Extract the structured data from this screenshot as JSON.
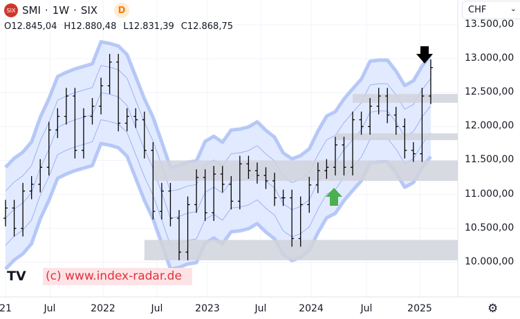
{
  "header": {
    "symbol": "SMI",
    "interval": "1W",
    "exchange": "SIX",
    "logo_text": "SIX",
    "data_badge": "D",
    "open": "O12.845,04",
    "high": "H12.880,48",
    "low": "L12.831,39",
    "close": "C12.868,75"
  },
  "currency": "CHF",
  "watermark": "(c) www.index-radar.de",
  "tv_logo": "TV",
  "chart_data": {
    "type": "ohlc",
    "title": "SMI · 1W · SIX",
    "x_labels": [
      "21",
      "Jul",
      "2022",
      "Jul",
      "2023",
      "Jul",
      "2024",
      "Jul",
      "2025"
    ],
    "y_ticks": [
      "13.500,00",
      "13.000,00",
      "12.500,00",
      "12.000,00",
      "11.500,00",
      "11.000,00",
      "10.500,00",
      "10.000,00"
    ],
    "ylim": [
      9950,
      13550
    ],
    "months": [
      "2021-01",
      "2021-02",
      "2021-03",
      "2021-04",
      "2021-05",
      "2021-06",
      "2021-07",
      "2021-08",
      "2021-09",
      "2021-10",
      "2021-11",
      "2021-12",
      "2022-01",
      "2022-02",
      "2022-03",
      "2022-04",
      "2022-05",
      "2022-06",
      "2022-07",
      "2022-08",
      "2022-09",
      "2022-10",
      "2022-11",
      "2022-12",
      "2023-01",
      "2023-02",
      "2023-03",
      "2023-04",
      "2023-05",
      "2023-06",
      "2023-07",
      "2023-08",
      "2023-09",
      "2023-10",
      "2023-11",
      "2023-12",
      "2024-01",
      "2024-02",
      "2024-03",
      "2024-04",
      "2024-05",
      "2024-06",
      "2024-07",
      "2024-08",
      "2024-09",
      "2024-10",
      "2024-11",
      "2024-12",
      "2025-01",
      "2025-02"
    ],
    "close": [
      10800,
      10500,
      11050,
      11150,
      11400,
      11950,
      12150,
      12450,
      11650,
      12150,
      12300,
      12600,
      12950,
      12050,
      12150,
      12100,
      11650,
      10750,
      11050,
      10650,
      10150,
      10850,
      11250,
      10730,
      11300,
      11150,
      10900,
      11450,
      11350,
      11280,
      11200,
      10950,
      10950,
      10350,
      10850,
      11140,
      11350,
      11400,
      11730,
      11400,
      12100,
      12000,
      12300,
      12450,
      12170,
      12000,
      11650,
      11600,
      12450,
      12869
    ],
    "zones": [
      {
        "from": 12350,
        "to": 12480,
        "start": "2024-05"
      },
      {
        "from": 11800,
        "to": 11900,
        "start": "2024-03"
      },
      {
        "from": 11200,
        "to": 11500,
        "start": "2022-06"
      },
      {
        "from": 10030,
        "to": 10330,
        "start": "2022-05"
      }
    ],
    "markers": [
      {
        "type": "arrow-down",
        "color": "#000000",
        "at": "2025-02",
        "price": 13000
      },
      {
        "type": "arrow-up",
        "color": "#4caf50",
        "at": "2024-03",
        "price": 11000
      }
    ],
    "colors": {
      "bars": "#000000",
      "band_fill": "#dbe5ff",
      "band_line": "#a8bdf5",
      "zone": "#d1d4dc"
    }
  }
}
